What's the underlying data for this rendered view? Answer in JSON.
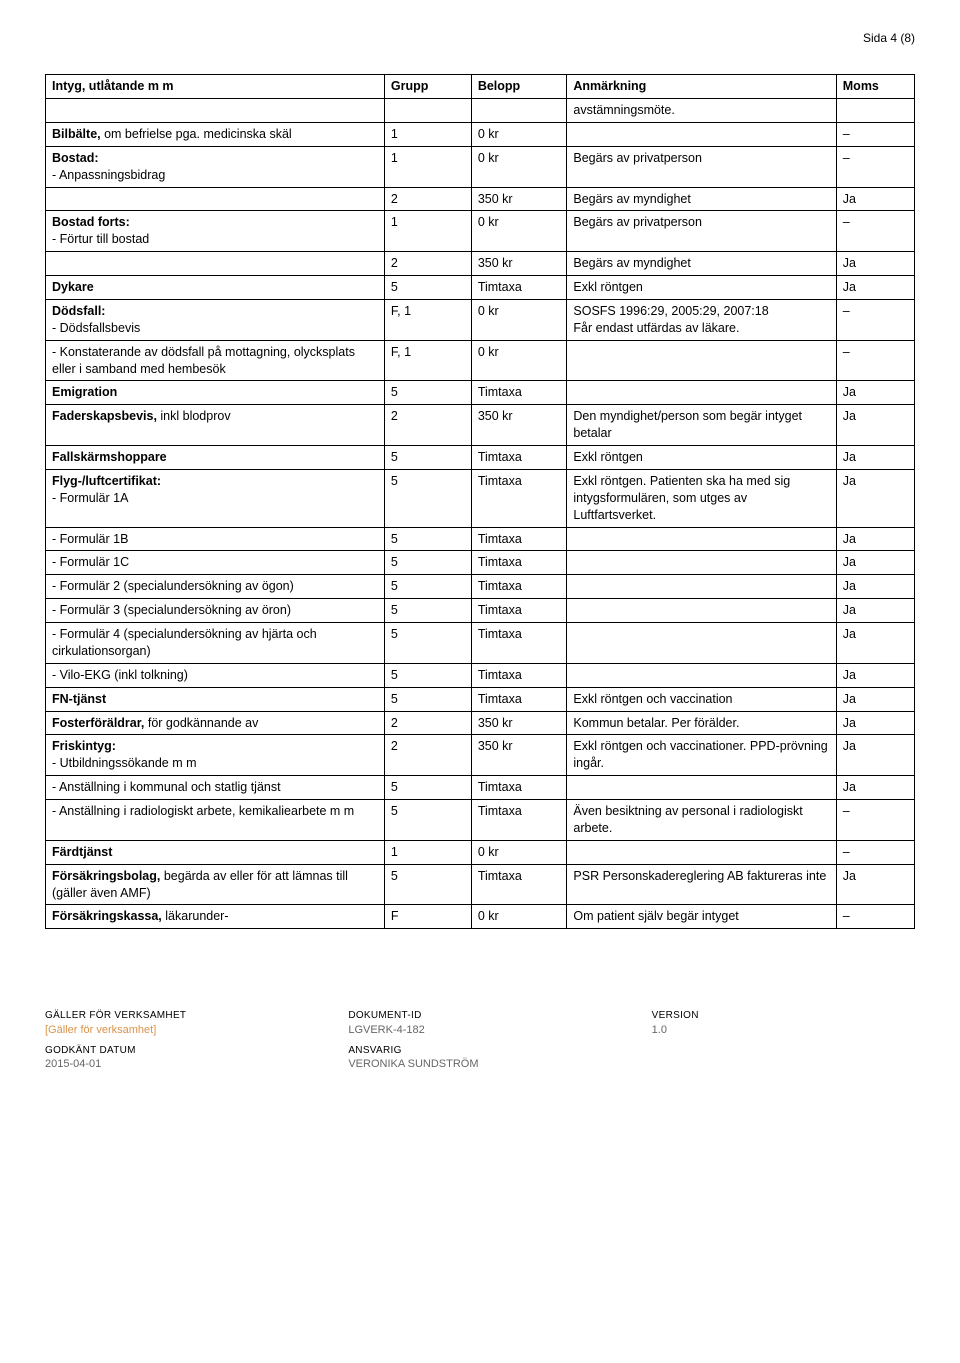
{
  "page_label": "Sida 4 (8)",
  "headers": [
    "Intyg, utlåtande m m",
    "Grupp",
    "Belopp",
    "Anmärkning",
    "Moms"
  ],
  "continuation_note": "avstämningsmöte.",
  "rows": [
    {
      "name_html": "<span class='bold'>Bilbälte,</span> om befrielse pga. medicinska skäl",
      "grupp": "1",
      "belopp": "0 kr",
      "anm": "",
      "moms": "–"
    },
    {
      "name_html": "<span class='bold'>Bostad:</span><br>- Anpassningsbidrag",
      "grupp": "1",
      "belopp": "0 kr",
      "anm": "Begärs av privatperson",
      "moms": "–"
    },
    {
      "name_html": "",
      "grupp": "2",
      "belopp": "350 kr",
      "anm": "Begärs av myndighet",
      "moms": "Ja"
    },
    {
      "name_html": "<span class='bold'>Bostad forts:</span><br>- Förtur till bostad",
      "grupp": "1",
      "belopp": "0 kr",
      "anm": "Begärs av privatperson",
      "moms": "–"
    },
    {
      "name_html": "",
      "grupp": "2",
      "belopp": "350 kr",
      "anm": "Begärs av myndighet",
      "moms": "Ja"
    },
    {
      "name_html": "<span class='bold'>Dykare</span>",
      "grupp": "5",
      "belopp": "Timtaxa",
      "anm": "Exkl röntgen",
      "moms": "Ja"
    },
    {
      "name_html": "<span class='bold'>Dödsfall:</span><br>- Dödsfallsbevis",
      "grupp": "F, 1",
      "belopp": "0 kr",
      "anm": "SOSFS 1996:29, 2005:29, 2007:18<br>Får endast utfärdas av läkare.",
      "moms": "–"
    },
    {
      "name_html": "- Konstaterande av dödsfall på mottagning, olycksplats eller i samband med hembesök",
      "grupp": "F, 1",
      "belopp": "0 kr",
      "anm": "",
      "moms": "–"
    },
    {
      "name_html": "<span class='bold'>Emigration</span>",
      "grupp": "5",
      "belopp": "Timtaxa",
      "anm": "",
      "moms": "Ja"
    },
    {
      "name_html": "<span class='bold'>Faderskapsbevis,</span> inkl blodprov",
      "grupp": "2",
      "belopp": "350 kr",
      "anm": "Den myndighet/person som begär intyget betalar",
      "moms": "Ja"
    },
    {
      "name_html": "<span class='bold'>Fallskärmshoppare</span>",
      "grupp": "5",
      "belopp": "Timtaxa",
      "anm": "Exkl röntgen",
      "moms": "Ja"
    },
    {
      "name_html": "<span class='bold'>Flyg-/luftcertifikat:</span><br>- Formulär 1A",
      "grupp": "5",
      "belopp": "Timtaxa",
      "anm": "Exkl röntgen. Patienten ska ha med sig intygsformulären, som utges av Luftfartsverket.",
      "moms": "Ja"
    },
    {
      "name_html": "- Formulär 1B",
      "grupp": "5",
      "belopp": "Timtaxa",
      "anm": "",
      "moms": "Ja"
    },
    {
      "name_html": "- Formulär 1C",
      "grupp": "5",
      "belopp": "Timtaxa",
      "anm": "",
      "moms": "Ja"
    },
    {
      "name_html": "- Formulär 2 (specialundersökning av ögon)",
      "grupp": "5",
      "belopp": "Timtaxa",
      "anm": "",
      "moms": "Ja"
    },
    {
      "name_html": "- Formulär 3 (specialundersökning av öron)",
      "grupp": "5",
      "belopp": "Timtaxa",
      "anm": "",
      "moms": "Ja"
    },
    {
      "name_html": "- Formulär 4 (specialundersökning av hjärta och cirkulationsorgan)",
      "grupp": "5",
      "belopp": "Timtaxa",
      "anm": "",
      "moms": "Ja"
    },
    {
      "name_html": "- Vilo-EKG (inkl tolkning)",
      "grupp": "5",
      "belopp": "Timtaxa",
      "anm": "",
      "moms": "Ja"
    },
    {
      "name_html": "<span class='bold'>FN-tjänst</span>",
      "grupp": "5",
      "belopp": "Timtaxa",
      "anm": "Exkl röntgen och vaccination",
      "moms": "Ja"
    },
    {
      "name_html": "<span class='bold'>Fosterföräldrar,</span> för godkännande av",
      "grupp": "2",
      "belopp": "350 kr",
      "anm": "Kommun betalar. Per förälder.",
      "moms": "Ja"
    },
    {
      "name_html": "<span class='bold'>Friskintyg:</span><br>- Utbildningssökande m m",
      "grupp": "2",
      "belopp": "350 kr",
      "anm": "Exkl röntgen och vaccinationer. PPD-prövning ingår.",
      "moms": "Ja"
    },
    {
      "name_html": "- Anställning i kommunal och statlig tjänst",
      "grupp": "5",
      "belopp": "Timtaxa",
      "anm": "",
      "moms": "Ja"
    },
    {
      "name_html": "- Anställning i radiologiskt arbete, kemikaliearbete m m",
      "grupp": "5",
      "belopp": "Timtaxa",
      "anm": "Även besiktning av personal i radiologiskt arbete.",
      "moms": "–"
    },
    {
      "name_html": "<span class='bold'>Färdtjänst</span>",
      "grupp": "1",
      "belopp": "0 kr",
      "anm": "",
      "moms": "–"
    },
    {
      "name_html": "<span class='bold'>Försäkringsbolag,</span> begärda av eller för att lämnas till (gäller även AMF)",
      "grupp": "5",
      "belopp": "Timtaxa",
      "anm": "PSR Personskadereglering AB faktureras inte",
      "moms": "Ja"
    },
    {
      "name_html": "<span class='bold'>Försäkringskassa,</span> läkarunder-",
      "grupp": "F",
      "belopp": "0 kr",
      "anm": "Om patient själv begär intyget",
      "moms": "–"
    }
  ],
  "footer": {
    "col1": {
      "lbl1": "GÄLLER FÖR VERKSAMHET",
      "val1": "[Gäller för verksamhet]",
      "lbl2": "GODKÄNT DATUM",
      "val2": "2015-04-01"
    },
    "col2": {
      "lbl1": "DOKUMENT-ID",
      "val1": "LGVERK-4-182",
      "lbl2": "ANSVARIG",
      "val2": "VERONIKA SUNDSTRÖM"
    },
    "col3": {
      "lbl1": "VERSION",
      "val1": "1.0"
    }
  }
}
